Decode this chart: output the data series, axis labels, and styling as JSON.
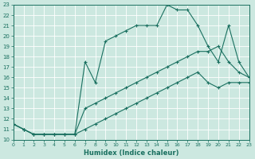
{
  "xlabel": "Humidex (Indice chaleur)",
  "bg_color": "#cce8e0",
  "grid_color": "#ffffff",
  "line_color": "#1a7060",
  "xlim": [
    0,
    23
  ],
  "ylim": [
    10,
    23
  ],
  "xticks": [
    0,
    1,
    2,
    3,
    4,
    5,
    6,
    7,
    8,
    9,
    10,
    11,
    12,
    13,
    14,
    15,
    16,
    17,
    18,
    19,
    20,
    21,
    22,
    23
  ],
  "yticks": [
    10,
    11,
    12,
    13,
    14,
    15,
    16,
    17,
    18,
    19,
    20,
    21,
    22,
    23
  ],
  "series1_x": [
    0,
    1,
    2,
    3,
    4,
    5,
    6,
    7,
    8,
    9,
    10,
    11,
    12,
    13,
    14,
    15,
    16,
    17,
    18,
    19,
    20,
    21,
    22,
    23
  ],
  "series1_y": [
    11.5,
    11.0,
    10.5,
    10.5,
    10.5,
    10.5,
    10.5,
    17.5,
    15.5,
    19.5,
    20.0,
    20.5,
    21.0,
    21.0,
    21.0,
    23.0,
    22.5,
    22.5,
    21.0,
    19.0,
    17.5,
    21.0,
    17.5,
    16.0
  ],
  "series2_x": [
    0,
    1,
    2,
    3,
    4,
    5,
    6,
    7,
    8,
    9,
    10,
    11,
    12,
    13,
    14,
    15,
    16,
    17,
    18,
    19,
    20,
    21,
    22,
    23
  ],
  "series2_y": [
    11.5,
    11.0,
    10.5,
    10.5,
    10.5,
    10.5,
    10.5,
    13.0,
    13.5,
    14.0,
    14.5,
    15.0,
    15.5,
    16.0,
    16.5,
    17.0,
    17.5,
    18.0,
    18.5,
    18.5,
    19.0,
    17.5,
    16.5,
    16.0
  ],
  "series3_x": [
    0,
    1,
    2,
    3,
    4,
    5,
    6,
    7,
    8,
    9,
    10,
    11,
    12,
    13,
    14,
    15,
    16,
    17,
    18,
    19,
    20,
    21,
    22,
    23
  ],
  "series3_y": [
    11.5,
    11.0,
    10.5,
    10.5,
    10.5,
    10.5,
    10.5,
    11.0,
    11.5,
    12.0,
    12.5,
    13.0,
    13.5,
    14.0,
    14.5,
    15.0,
    15.5,
    16.0,
    16.5,
    15.5,
    15.0,
    15.5,
    15.5,
    15.5
  ]
}
